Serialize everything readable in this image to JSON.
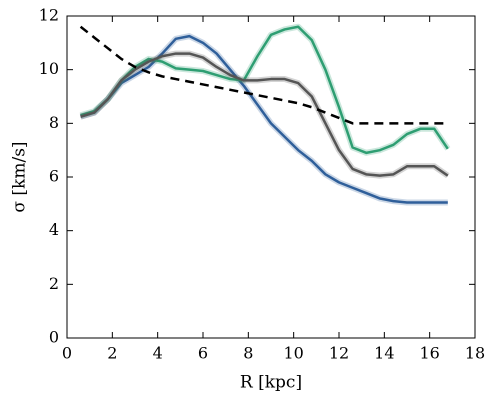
{
  "chart_data": {
    "type": "line",
    "xlabel": "R [kpc]",
    "ylabel": "σ [km/s]",
    "x": [
      0.6,
      1.2,
      1.8,
      2.4,
      3.0,
      3.6,
      4.2,
      4.8,
      5.4,
      6.0,
      6.6,
      7.2,
      7.8,
      8.4,
      9.0,
      9.6,
      10.2,
      10.8,
      11.4,
      12.0,
      12.6,
      13.2,
      13.8,
      14.4,
      15.0,
      15.6,
      16.2,
      16.8
    ],
    "series": [
      {
        "color": "#2f5f9a",
        "dashed": false,
        "values": [
          8.25,
          8.4,
          8.9,
          9.5,
          9.8,
          10.1,
          10.6,
          11.15,
          11.25,
          11.0,
          10.6,
          10.0,
          9.4,
          8.7,
          8.0,
          7.5,
          7.0,
          6.6,
          6.1,
          5.8,
          5.6,
          5.4,
          5.2,
          5.1,
          5.05,
          5.05,
          5.05,
          5.05
        ]
      },
      {
        "color": "#2e9e72",
        "dashed": false,
        "values": [
          8.3,
          8.45,
          8.9,
          9.6,
          10.1,
          10.4,
          10.3,
          10.05,
          10.0,
          9.95,
          9.8,
          9.65,
          9.6,
          10.5,
          11.3,
          11.5,
          11.6,
          11.1,
          10.0,
          8.6,
          7.1,
          6.9,
          7.0,
          7.2,
          7.6,
          7.8,
          7.8,
          7.05
        ]
      },
      {
        "color": "#555555",
        "dashed": false,
        "values": [
          8.25,
          8.4,
          8.9,
          9.6,
          10.0,
          10.3,
          10.5,
          10.6,
          10.6,
          10.45,
          10.1,
          9.8,
          9.6,
          9.6,
          9.65,
          9.65,
          9.5,
          9.0,
          8.0,
          7.0,
          6.3,
          6.1,
          6.05,
          6.1,
          6.4,
          6.4,
          6.4,
          6.05
        ]
      },
      {
        "color": "#000000",
        "dashed": true,
        "values": [
          11.6,
          11.2,
          10.8,
          10.4,
          10.1,
          9.9,
          9.75,
          9.65,
          9.55,
          9.45,
          9.35,
          9.25,
          9.15,
          9.05,
          8.95,
          8.85,
          8.75,
          8.6,
          8.4,
          8.2,
          8.0,
          8.0,
          8.0,
          8.0,
          8.0,
          8.0,
          8.0,
          8.0
        ]
      }
    ],
    "xlim": [
      0,
      18
    ],
    "ylim": [
      0,
      12
    ],
    "xticks": [
      0,
      2,
      4,
      6,
      8,
      10,
      12,
      14,
      16,
      18
    ],
    "yticks": [
      0,
      2,
      4,
      6,
      8,
      10,
      12
    ]
  }
}
